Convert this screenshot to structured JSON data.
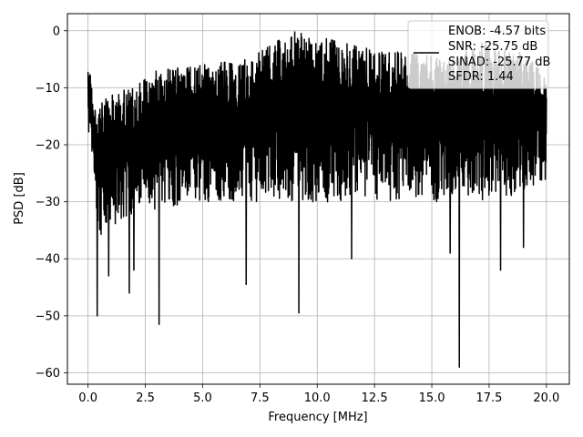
{
  "chart_data": {
    "type": "line",
    "title": "",
    "xlabel": "Frequency [MHz]",
    "ylabel": "PSD [dB]",
    "xlim": [
      -0.9,
      21.0
    ],
    "ylim": [
      -62,
      3
    ],
    "xticks": [
      0.0,
      2.5,
      5.0,
      7.5,
      10.0,
      12.5,
      15.0,
      17.5,
      20.0
    ],
    "xtick_labels": [
      "0.0",
      "2.5",
      "5.0",
      "7.5",
      "10.0",
      "12.5",
      "15.0",
      "17.5",
      "20.0"
    ],
    "yticks": [
      0,
      -10,
      -20,
      -30,
      -40,
      -50,
      -60
    ],
    "ytick_labels": [
      "0",
      "−10",
      "−20",
      "−30",
      "−40",
      "−50",
      "−60"
    ],
    "grid": true,
    "legend": {
      "placement": "top-right",
      "entries": [
        "ENOB: -4.57 bits",
        "SNR: -25.75 dB",
        "SINAD: -25.77 dB",
        "SFDR: 1.44"
      ]
    },
    "series": [
      {
        "color": "#000000",
        "x_start": 0.0,
        "x_end": 20.0,
        "upper_envelope": [
          [
            0.0,
            -4
          ],
          [
            0.3,
            -14
          ],
          [
            1.0,
            -11
          ],
          [
            2.0,
            -10
          ],
          [
            3.0,
            -7
          ],
          [
            5.0,
            -6
          ],
          [
            7.0,
            -5
          ],
          [
            9.0,
            0
          ],
          [
            10.0,
            -1
          ],
          [
            12.0,
            -3
          ],
          [
            14.0,
            -4
          ],
          [
            16.0,
            -5
          ],
          [
            17.0,
            -2
          ],
          [
            18.0,
            -3
          ],
          [
            19.0,
            -4
          ],
          [
            20.0,
            -8
          ]
        ],
        "lower_envelope": [
          [
            0.0,
            -18
          ],
          [
            0.5,
            -36
          ],
          [
            2.0,
            -32
          ],
          [
            5.0,
            -30
          ],
          [
            8.0,
            -30
          ],
          [
            10.0,
            -30
          ],
          [
            12.0,
            -30
          ],
          [
            15.0,
            -30
          ],
          [
            18.0,
            -30
          ],
          [
            20.0,
            -26
          ]
        ],
        "dips": [
          [
            0.4,
            -50
          ],
          [
            0.9,
            -43
          ],
          [
            1.8,
            -46
          ],
          [
            2.0,
            -42
          ],
          [
            3.1,
            -51.5
          ],
          [
            6.9,
            -44.5
          ],
          [
            9.2,
            -49.5
          ],
          [
            11.5,
            -40
          ],
          [
            15.8,
            -39
          ],
          [
            16.2,
            -59
          ],
          [
            18.0,
            -42
          ],
          [
            19.0,
            -38
          ]
        ]
      }
    ]
  }
}
